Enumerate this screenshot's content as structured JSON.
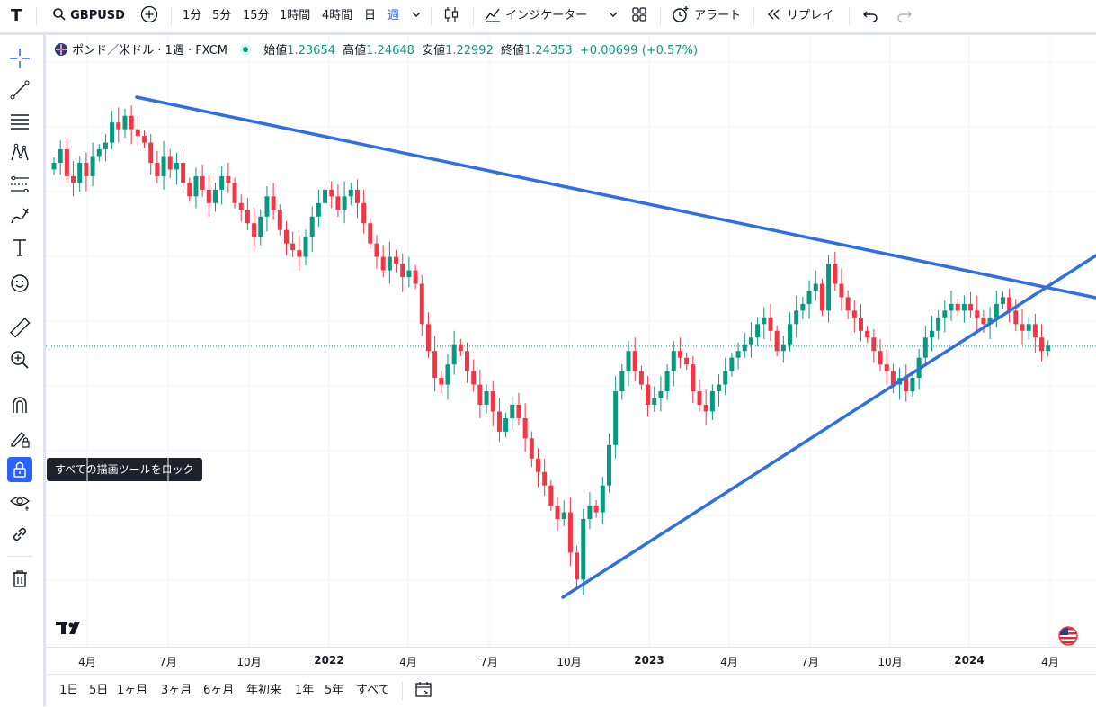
{
  "toolbar": {
    "symbol": "GBPUSD",
    "intervals": [
      "1分",
      "5分",
      "15分",
      "1時間",
      "4時間",
      "日",
      "週"
    ],
    "indicators_label": "インジケーター",
    "alert_label": "アラート",
    "replay_label": "リプレイ"
  },
  "legend": {
    "name": "ポンド／米ドル · 1週 · FXCM",
    "open_label": "始値",
    "open": "1.23654",
    "high_label": "高値",
    "high": "1.24648",
    "low_label": "安値",
    "low": "1.22992",
    "close_label": "終値",
    "close": "1.24353",
    "change": "+0.00699 (+0.57%)"
  },
  "tooltip": {
    "text": "すべての描画ツールをロック"
  },
  "time_axis": [
    "4月",
    "7月",
    "10月",
    "2022",
    "4月",
    "7月",
    "10月",
    "2023",
    "4月",
    "7月",
    "10月",
    "2024",
    "4月"
  ],
  "ranges": [
    "1日",
    "5日",
    "1ヶ月",
    "3ヶ月",
    "6ヶ月",
    "年初来",
    "1年",
    "5年",
    "すべて"
  ],
  "colors": {
    "up": "#089981",
    "down": "#f23645",
    "trend": "#2f6fe6",
    "accent": "#2962ff"
  },
  "chart_data": {
    "type": "candlestick",
    "closes": [
      1.38,
      1.39,
      1.37,
      1.365,
      1.38,
      1.37,
      1.385,
      1.39,
      1.395,
      1.41,
      1.405,
      1.415,
      1.405,
      1.4,
      1.395,
      1.38,
      1.37,
      1.385,
      1.375,
      1.38,
      1.365,
      1.355,
      1.37,
      1.36,
      1.35,
      1.36,
      1.37,
      1.365,
      1.35,
      1.345,
      1.335,
      1.325,
      1.34,
      1.355,
      1.345,
      1.33,
      1.32,
      1.315,
      1.31,
      1.325,
      1.34,
      1.35,
      1.36,
      1.355,
      1.345,
      1.355,
      1.36,
      1.35,
      1.335,
      1.32,
      1.31,
      1.3,
      1.31,
      1.305,
      1.295,
      1.3,
      1.29,
      1.26,
      1.24,
      1.22,
      1.215,
      1.23,
      1.245,
      1.24,
      1.225,
      1.215,
      1.2,
      1.21,
      1.195,
      1.18,
      1.19,
      1.2,
      1.19,
      1.175,
      1.16,
      1.15,
      1.14,
      1.125,
      1.115,
      1.12,
      1.09,
      1.07,
      1.115,
      1.125,
      1.12,
      1.14,
      1.17,
      1.21,
      1.225,
      1.24,
      1.225,
      1.215,
      1.2,
      1.205,
      1.21,
      1.225,
      1.24,
      1.235,
      1.23,
      1.21,
      1.2,
      1.195,
      1.21,
      1.215,
      1.225,
      1.235,
      1.24,
      1.245,
      1.25,
      1.26,
      1.265,
      1.255,
      1.24,
      1.245,
      1.26,
      1.27,
      1.275,
      1.285,
      1.29,
      1.27,
      1.305,
      1.29,
      1.28,
      1.27,
      1.265,
      1.255,
      1.25,
      1.24,
      1.23,
      1.225,
      1.215,
      1.22,
      1.21,
      1.22,
      1.235,
      1.25,
      1.255,
      1.265,
      1.27,
      1.275,
      1.27,
      1.275,
      1.27,
      1.265,
      1.26,
      1.265,
      1.275,
      1.28,
      1.27,
      1.26,
      1.255,
      1.26,
      1.25,
      1.24,
      1.244
    ],
    "trendlines": [
      {
        "from": [
          "2021-06",
          1.415
        ],
        "to": [
          "2024-05",
          1.265
        ]
      },
      {
        "from": [
          "2022-09",
          1.04
        ],
        "to": [
          "2024-05",
          1.295
        ]
      }
    ],
    "last_price": 1.24353
  }
}
